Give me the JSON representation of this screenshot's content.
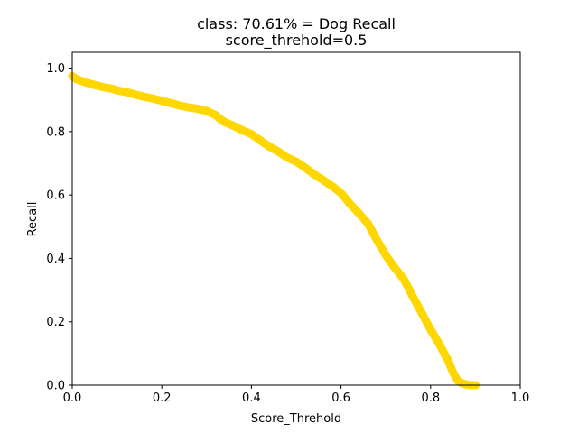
{
  "chart_data": {
    "type": "line",
    "title": "class: 70.61% = Dog Recall",
    "subtitle": "score_threhold=0.5",
    "xlabel": "Score_Threhold",
    "ylabel": "Recall",
    "xlim": [
      0.0,
      1.0
    ],
    "ylim": [
      0.0,
      1.05
    ],
    "x_ticks": [
      "0.0",
      "0.2",
      "0.4",
      "0.6",
      "0.8",
      "1.0"
    ],
    "y_ticks": [
      "0.0",
      "0.2",
      "0.4",
      "0.6",
      "0.8",
      "1.0"
    ],
    "grid": false,
    "series": [
      {
        "color": "#ffd700",
        "x": [
          0.0,
          0.01,
          0.02,
          0.03,
          0.05,
          0.07,
          0.09,
          0.1,
          0.12,
          0.14,
          0.16,
          0.18,
          0.2,
          0.22,
          0.24,
          0.26,
          0.28,
          0.3,
          0.32,
          0.33,
          0.34,
          0.36,
          0.38,
          0.4,
          0.42,
          0.44,
          0.46,
          0.48,
          0.5,
          0.52,
          0.54,
          0.56,
          0.58,
          0.6,
          0.62,
          0.64,
          0.66,
          0.68,
          0.7,
          0.72,
          0.74,
          0.76,
          0.78,
          0.8,
          0.82,
          0.84,
          0.85,
          0.86,
          0.87,
          0.88,
          0.89,
          0.9
        ],
        "y": [
          0.975,
          0.965,
          0.96,
          0.955,
          0.947,
          0.94,
          0.935,
          0.93,
          0.925,
          0.917,
          0.91,
          0.904,
          0.897,
          0.89,
          0.882,
          0.876,
          0.872,
          0.865,
          0.852,
          0.84,
          0.83,
          0.818,
          0.804,
          0.792,
          0.772,
          0.753,
          0.737,
          0.718,
          0.705,
          0.686,
          0.665,
          0.647,
          0.628,
          0.606,
          0.572,
          0.542,
          0.51,
          0.458,
          0.41,
          0.37,
          0.335,
          0.28,
          0.228,
          0.175,
          0.128,
          0.075,
          0.04,
          0.015,
          0.006,
          0.002,
          0.0,
          0.0
        ]
      }
    ]
  }
}
